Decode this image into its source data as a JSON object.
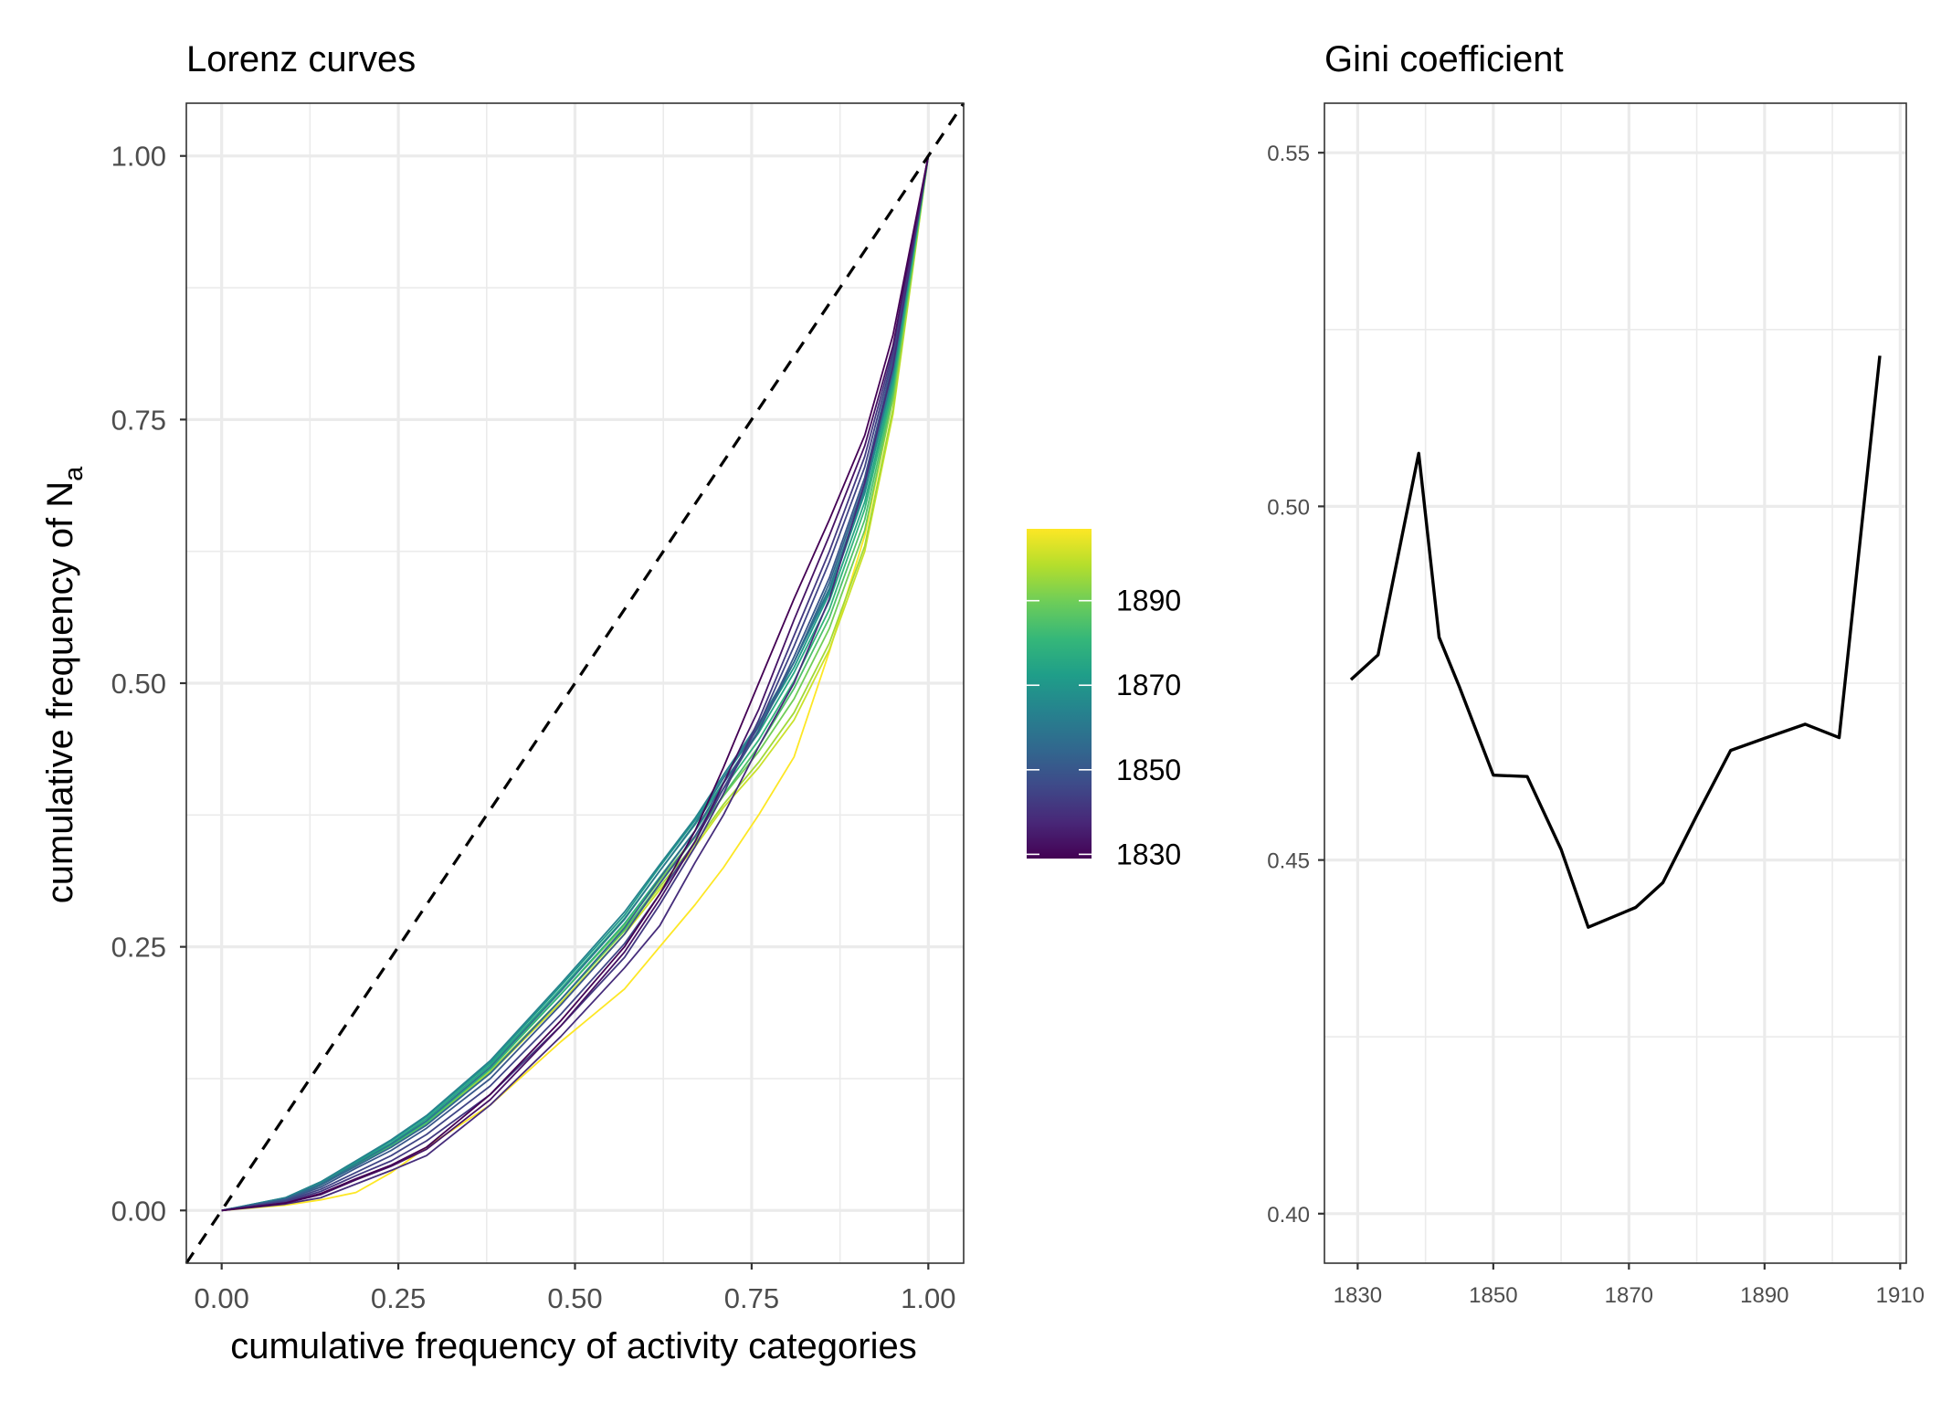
{
  "chart_data": [
    {
      "type": "line",
      "title": "Lorenz curves",
      "xlabel": "cumulative frequency of activity categories",
      "ylabel": "cumulative frequency of N",
      "ylabel_subscript": "a",
      "xlim": [
        -0.05,
        1.05
      ],
      "ylim": [
        -0.05,
        1.05
      ],
      "x_ticks": [
        0.0,
        0.25,
        0.5,
        0.75,
        1.0
      ],
      "x_tick_labels": [
        "0.00",
        "0.25",
        "0.50",
        "0.75",
        "1.00"
      ],
      "y_ticks": [
        0.0,
        0.25,
        0.5,
        0.75,
        1.0
      ],
      "y_tick_labels": [
        "0.00",
        "0.25",
        "0.50",
        "0.75",
        "1.00"
      ],
      "grid": true,
      "reference_line": {
        "style": "dashed",
        "color": "#000000",
        "x": [
          -0.05,
          1.05
        ],
        "y": [
          -0.05,
          1.05
        ]
      },
      "color_scale": {
        "palette": "viridis",
        "min": 1829,
        "max": 1907,
        "stops": [
          "#440154",
          "#482878",
          "#3E4A89",
          "#31688E",
          "#26828E",
          "#1F9E89",
          "#35B779",
          "#6DCD59",
          "#B4DE2C",
          "#FDE725"
        ]
      },
      "legend": {
        "position": "right",
        "ticks": [
          1830,
          1850,
          1870,
          1890
        ],
        "tick_labels": [
          "1830",
          "1850",
          "1870",
          "1890"
        ]
      },
      "series": [
        {
          "year": 1829,
          "x": [
            0.0,
            0.09,
            0.14,
            0.19,
            0.24,
            0.29,
            0.38,
            0.48,
            0.57,
            0.62,
            0.67,
            0.71,
            0.76,
            0.81,
            0.86,
            0.91,
            0.95,
            1.0
          ],
          "y": [
            0.0,
            0.007,
            0.016,
            0.03,
            0.043,
            0.06,
            0.11,
            0.18,
            0.25,
            0.3,
            0.36,
            0.42,
            0.5,
            0.58,
            0.655,
            0.735,
            0.83,
            1.0
          ]
        },
        {
          "year": 1833,
          "x": [
            0.0,
            0.09,
            0.14,
            0.19,
            0.24,
            0.29,
            0.38,
            0.48,
            0.57,
            0.62,
            0.67,
            0.71,
            0.76,
            0.81,
            0.86,
            0.91,
            0.95,
            1.0
          ],
          "y": [
            0.0,
            0.007,
            0.015,
            0.029,
            0.042,
            0.058,
            0.105,
            0.175,
            0.245,
            0.295,
            0.35,
            0.405,
            0.475,
            0.56,
            0.64,
            0.725,
            0.82,
            1.0
          ]
        },
        {
          "year": 1839,
          "x": [
            0.0,
            0.09,
            0.14,
            0.19,
            0.24,
            0.29,
            0.38,
            0.48,
            0.57,
            0.62,
            0.67,
            0.71,
            0.76,
            0.81,
            0.86,
            0.91,
            0.95,
            1.0
          ],
          "y": [
            0.0,
            0.006,
            0.012,
            0.025,
            0.038,
            0.052,
            0.1,
            0.165,
            0.23,
            0.27,
            0.33,
            0.375,
            0.44,
            0.5,
            0.58,
            0.69,
            0.8,
            1.0
          ]
        },
        {
          "year": 1842,
          "x": [
            0.0,
            0.09,
            0.14,
            0.19,
            0.24,
            0.29,
            0.38,
            0.48,
            0.57,
            0.62,
            0.67,
            0.71,
            0.76,
            0.81,
            0.86,
            0.91,
            0.95,
            1.0
          ],
          "y": [
            0.0,
            0.008,
            0.018,
            0.033,
            0.047,
            0.066,
            0.11,
            0.175,
            0.24,
            0.29,
            0.345,
            0.395,
            0.465,
            0.545,
            0.625,
            0.715,
            0.815,
            1.0
          ]
        },
        {
          "year": 1845,
          "x": [
            0.0,
            0.09,
            0.14,
            0.19,
            0.24,
            0.29,
            0.38,
            0.48,
            0.57,
            0.62,
            0.67,
            0.71,
            0.76,
            0.81,
            0.86,
            0.91,
            0.95,
            1.0
          ],
          "y": [
            0.0,
            0.009,
            0.02,
            0.036,
            0.052,
            0.072,
            0.118,
            0.186,
            0.253,
            0.3,
            0.35,
            0.4,
            0.46,
            0.535,
            0.615,
            0.705,
            0.81,
            1.0
          ]
        },
        {
          "year": 1850,
          "x": [
            0.0,
            0.09,
            0.14,
            0.19,
            0.24,
            0.29,
            0.38,
            0.48,
            0.57,
            0.62,
            0.67,
            0.71,
            0.76,
            0.81,
            0.86,
            0.91,
            0.95,
            1.0
          ],
          "y": [
            0.0,
            0.01,
            0.022,
            0.04,
            0.057,
            0.078,
            0.125,
            0.195,
            0.262,
            0.31,
            0.355,
            0.4,
            0.455,
            0.525,
            0.6,
            0.695,
            0.805,
            1.0
          ]
        },
        {
          "year": 1855,
          "x": [
            0.0,
            0.09,
            0.14,
            0.19,
            0.24,
            0.29,
            0.38,
            0.48,
            0.57,
            0.62,
            0.67,
            0.71,
            0.76,
            0.81,
            0.86,
            0.91,
            0.95,
            1.0
          ],
          "y": [
            0.0,
            0.011,
            0.024,
            0.042,
            0.06,
            0.081,
            0.13,
            0.2,
            0.268,
            0.315,
            0.36,
            0.405,
            0.455,
            0.52,
            0.595,
            0.69,
            0.8,
            1.0
          ]
        },
        {
          "year": 1860,
          "x": [
            0.0,
            0.09,
            0.14,
            0.19,
            0.24,
            0.29,
            0.38,
            0.48,
            0.57,
            0.62,
            0.67,
            0.71,
            0.76,
            0.81,
            0.86,
            0.91,
            0.95,
            1.0
          ],
          "y": [
            0.0,
            0.011,
            0.025,
            0.044,
            0.063,
            0.085,
            0.136,
            0.208,
            0.276,
            0.322,
            0.367,
            0.41,
            0.46,
            0.52,
            0.59,
            0.685,
            0.795,
            1.0
          ]
        },
        {
          "year": 1864,
          "x": [
            0.0,
            0.09,
            0.14,
            0.19,
            0.24,
            0.29,
            0.38,
            0.48,
            0.57,
            0.62,
            0.67,
            0.71,
            0.76,
            0.81,
            0.86,
            0.91,
            0.95,
            1.0
          ],
          "y": [
            0.0,
            0.012,
            0.027,
            0.047,
            0.067,
            0.09,
            0.142,
            0.215,
            0.283,
            0.328,
            0.372,
            0.413,
            0.462,
            0.52,
            0.588,
            0.682,
            0.793,
            1.0
          ]
        },
        {
          "year": 1871,
          "x": [
            0.0,
            0.09,
            0.14,
            0.19,
            0.24,
            0.29,
            0.38,
            0.48,
            0.57,
            0.62,
            0.67,
            0.71,
            0.76,
            0.81,
            0.86,
            0.91,
            0.95,
            1.0
          ],
          "y": [
            0.0,
            0.012,
            0.027,
            0.046,
            0.066,
            0.089,
            0.14,
            0.213,
            0.28,
            0.326,
            0.37,
            0.41,
            0.458,
            0.515,
            0.585,
            0.68,
            0.79,
            1.0
          ]
        },
        {
          "year": 1875,
          "x": [
            0.0,
            0.09,
            0.14,
            0.19,
            0.24,
            0.29,
            0.38,
            0.48,
            0.57,
            0.62,
            0.67,
            0.71,
            0.76,
            0.81,
            0.86,
            0.91,
            0.95,
            1.0
          ],
          "y": [
            0.0,
            0.011,
            0.026,
            0.045,
            0.064,
            0.087,
            0.138,
            0.21,
            0.277,
            0.322,
            0.366,
            0.406,
            0.453,
            0.51,
            0.578,
            0.672,
            0.785,
            1.0
          ]
        },
        {
          "year": 1880,
          "x": [
            0.0,
            0.09,
            0.14,
            0.19,
            0.24,
            0.29,
            0.38,
            0.48,
            0.57,
            0.62,
            0.67,
            0.71,
            0.76,
            0.81,
            0.86,
            0.91,
            0.95,
            1.0
          ],
          "y": [
            0.0,
            0.011,
            0.025,
            0.044,
            0.062,
            0.084,
            0.134,
            0.205,
            0.272,
            0.316,
            0.36,
            0.4,
            0.446,
            0.502,
            0.57,
            0.665,
            0.78,
            1.0
          ]
        },
        {
          "year": 1885,
          "x": [
            0.0,
            0.09,
            0.14,
            0.19,
            0.24,
            0.29,
            0.38,
            0.48,
            0.57,
            0.62,
            0.67,
            0.71,
            0.76,
            0.81,
            0.86,
            0.91,
            0.95,
            1.0
          ],
          "y": [
            0.0,
            0.01,
            0.024,
            0.043,
            0.06,
            0.082,
            0.13,
            0.2,
            0.266,
            0.31,
            0.354,
            0.394,
            0.44,
            0.495,
            0.562,
            0.655,
            0.775,
            1.0
          ]
        },
        {
          "year": 1890,
          "x": [
            0.0,
            0.09,
            0.14,
            0.19,
            0.24,
            0.29,
            0.38,
            0.48,
            0.57,
            0.62,
            0.67,
            0.71,
            0.76,
            0.81,
            0.86,
            0.91,
            0.95,
            1.0
          ],
          "y": [
            0.0,
            0.011,
            0.026,
            0.045,
            0.063,
            0.085,
            0.135,
            0.205,
            0.27,
            0.313,
            0.355,
            0.393,
            0.435,
            0.485,
            0.552,
            0.645,
            0.77,
            1.0
          ]
        },
        {
          "year": 1896,
          "x": [
            0.0,
            0.09,
            0.14,
            0.19,
            0.24,
            0.29,
            0.38,
            0.48,
            0.57,
            0.62,
            0.67,
            0.71,
            0.76,
            0.81,
            0.86,
            0.91,
            0.95,
            1.0
          ],
          "y": [
            0.0,
            0.01,
            0.025,
            0.044,
            0.062,
            0.083,
            0.132,
            0.2,
            0.265,
            0.307,
            0.348,
            0.385,
            0.425,
            0.472,
            0.538,
            0.63,
            0.76,
            1.0
          ]
        },
        {
          "year": 1901,
          "x": [
            0.0,
            0.09,
            0.14,
            0.19,
            0.24,
            0.29,
            0.38,
            0.48,
            0.57,
            0.62,
            0.67,
            0.71,
            0.76,
            0.81,
            0.86,
            0.91,
            0.95,
            1.0
          ],
          "y": [
            0.0,
            0.01,
            0.024,
            0.043,
            0.061,
            0.082,
            0.13,
            0.197,
            0.262,
            0.304,
            0.345,
            0.382,
            0.42,
            0.465,
            0.532,
            0.625,
            0.755,
            1.0
          ]
        },
        {
          "year": 1907,
          "x": [
            0.0,
            0.09,
            0.14,
            0.19,
            0.24,
            0.29,
            0.38,
            0.48,
            0.57,
            0.62,
            0.67,
            0.71,
            0.76,
            0.81,
            0.86,
            0.91,
            0.95,
            1.0
          ],
          "y": [
            0.0,
            0.005,
            0.01,
            0.017,
            0.036,
            0.06,
            0.1,
            0.16,
            0.21,
            0.25,
            0.29,
            0.325,
            0.375,
            0.43,
            0.53,
            0.64,
            0.77,
            1.0
          ]
        }
      ]
    },
    {
      "type": "line",
      "title": "Gini coefficient",
      "xlabel": "",
      "ylabel": "",
      "xlim": [
        1825.1,
        1910.9
      ],
      "ylim": [
        0.393,
        0.557
      ],
      "x_ticks": [
        1830,
        1850,
        1870,
        1890,
        1910
      ],
      "x_tick_labels": [
        "1830",
        "1850",
        "1870",
        "1890",
        "1910"
      ],
      "y_ticks": [
        0.4,
        0.45,
        0.5,
        0.55
      ],
      "y_tick_labels": [
        "0.40",
        "0.45",
        "0.50",
        "0.55"
      ],
      "grid": true,
      "line_color": "#000000",
      "x": [
        1829,
        1833,
        1839,
        1842,
        1845,
        1850,
        1855,
        1860,
        1864,
        1871,
        1875,
        1880,
        1885,
        1890,
        1896,
        1901,
        1907
      ],
      "y": [
        0.4755,
        0.479,
        0.5075,
        0.4815,
        0.4745,
        0.462,
        0.4618,
        0.4515,
        0.4405,
        0.4433,
        0.4468,
        0.4563,
        0.4655,
        0.4672,
        0.4692,
        0.4673,
        0.5213
      ]
    }
  ]
}
